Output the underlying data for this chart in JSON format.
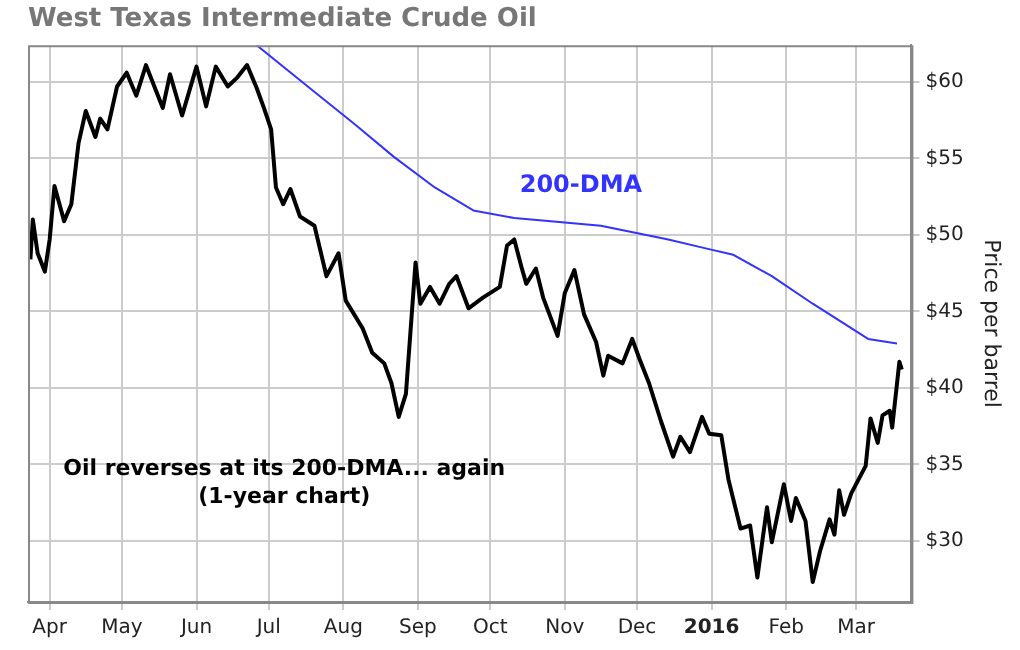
{
  "chart_data": {
    "type": "line",
    "title": "West Texas Intermediate Crude Oil",
    "ylabel": "Price per barrel",
    "annotations": [
      "Oil reverses at its 200-DMA... again",
      "(1-year chart)"
    ],
    "xlim": [
      "2015-03-23",
      "2016-03-24"
    ],
    "xticks": [
      {
        "value": "2015-04-01",
        "label": "Apr"
      },
      {
        "value": "2015-05-01",
        "label": "May"
      },
      {
        "value": "2015-06-01",
        "label": "Jun"
      },
      {
        "value": "2015-07-01",
        "label": "Jul"
      },
      {
        "value": "2015-08-01",
        "label": "Aug"
      },
      {
        "value": "2015-09-01",
        "label": "Sep"
      },
      {
        "value": "2015-10-01",
        "label": "Oct"
      },
      {
        "value": "2015-11-01",
        "label": "Nov"
      },
      {
        "value": "2015-12-01",
        "label": "Dec"
      },
      {
        "value": "2016-01-01",
        "label": "2016"
      },
      {
        "value": "2016-02-01",
        "label": "Feb"
      },
      {
        "value": "2016-03-01",
        "label": "Mar"
      }
    ],
    "ylim": [
      26,
      62.4
    ],
    "yticks": [
      {
        "value": 30,
        "label": "$30"
      },
      {
        "value": 35,
        "label": "$35"
      },
      {
        "value": 40,
        "label": "$40"
      },
      {
        "value": 45,
        "label": "$45"
      },
      {
        "value": 50,
        "label": "$50"
      },
      {
        "value": 55,
        "label": "$55"
      },
      {
        "value": 60,
        "label": "$60"
      }
    ],
    "grid": true,
    "legend": false,
    "marker": "none",
    "line_style": "solid",
    "series": [
      {
        "color": "#000000",
        "x": [
          "2015-03-24",
          "2015-03-25",
          "2015-03-27",
          "2015-03-30",
          "2015-04-01",
          "2015-04-03",
          "2015-04-07",
          "2015-04-10",
          "2015-04-13",
          "2015-04-16",
          "2015-04-20",
          "2015-04-22",
          "2015-04-25",
          "2015-04-29",
          "2015-05-03",
          "2015-05-07",
          "2015-05-11",
          "2015-05-14",
          "2015-05-18",
          "2015-05-21",
          "2015-05-26",
          "2015-06-01",
          "2015-06-05",
          "2015-06-09",
          "2015-06-14",
          "2015-06-18",
          "2015-06-22",
          "2015-06-26",
          "2015-06-29",
          "2015-07-02",
          "2015-07-04",
          "2015-07-07",
          "2015-07-10",
          "2015-07-14",
          "2015-07-20",
          "2015-07-25",
          "2015-07-30",
          "2015-08-02",
          "2015-08-09",
          "2015-08-13",
          "2015-08-18",
          "2015-08-21",
          "2015-08-24",
          "2015-08-27",
          "2015-08-31",
          "2015-09-02",
          "2015-09-06",
          "2015-09-10",
          "2015-09-14",
          "2015-09-17",
          "2015-09-22",
          "2015-09-28",
          "2015-10-05",
          "2015-10-08",
          "2015-10-11",
          "2015-10-14",
          "2015-10-16",
          "2015-10-20",
          "2015-10-23",
          "2015-10-29",
          "2015-11-01",
          "2015-11-05",
          "2015-11-09",
          "2015-11-14",
          "2015-11-17",
          "2015-11-19",
          "2015-11-25",
          "2015-11-29",
          "2015-12-02",
          "2015-12-06",
          "2015-12-11",
          "2015-12-16",
          "2015-12-19",
          "2015-12-23",
          "2015-12-28",
          "2015-12-31",
          "2016-01-05",
          "2016-01-08",
          "2016-01-13",
          "2016-01-17",
          "2016-01-20",
          "2016-01-24",
          "2016-01-26",
          "2016-01-31",
          "2016-02-03",
          "2016-02-05",
          "2016-02-09",
          "2016-02-12",
          "2016-02-15",
          "2016-02-19",
          "2016-02-21",
          "2016-02-23",
          "2016-02-25",
          "2016-02-28",
          "2016-03-02",
          "2016-03-05",
          "2016-03-07",
          "2016-03-10",
          "2016-03-12",
          "2016-03-15",
          "2016-03-16",
          "2016-03-19",
          "2016-03-20"
        ],
        "values": [
          48.4,
          51.0,
          48.8,
          47.6,
          49.7,
          53.2,
          50.9,
          52.0,
          56.0,
          58.1,
          56.4,
          57.6,
          56.9,
          59.7,
          60.6,
          59.1,
          61.1,
          59.9,
          58.3,
          60.5,
          57.8,
          61.0,
          58.4,
          61.0,
          59.7,
          60.3,
          61.1,
          59.6,
          58.3,
          56.9,
          53.1,
          52.0,
          53.0,
          51.2,
          50.6,
          47.3,
          48.8,
          45.7,
          43.9,
          42.3,
          41.6,
          40.3,
          38.1,
          39.6,
          48.2,
          45.5,
          46.6,
          45.5,
          46.8,
          47.3,
          45.2,
          45.9,
          46.6,
          49.3,
          49.7,
          47.9,
          46.8,
          47.8,
          45.9,
          43.4,
          46.2,
          47.7,
          44.8,
          43.0,
          40.8,
          42.1,
          41.6,
          43.2,
          41.9,
          40.3,
          37.8,
          35.5,
          36.8,
          35.8,
          38.1,
          37.0,
          36.9,
          34.0,
          30.8,
          31.0,
          27.6,
          32.2,
          29.9,
          33.7,
          31.3,
          32.8,
          31.3,
          27.3,
          29.3,
          31.4,
          30.4,
          33.3,
          31.7,
          33.1,
          34.0,
          34.9,
          38.0,
          36.4,
          38.2,
          38.5,
          37.4,
          41.7,
          41.2
        ]
      },
      {
        "name": "200-DMA",
        "color": "#3333ff",
        "x": [
          "2015-06-26",
          "2015-07-18",
          "2015-08-06",
          "2015-08-22",
          "2015-09-08",
          "2015-09-24",
          "2015-10-11",
          "2015-10-25",
          "2015-11-16",
          "2015-12-14",
          "2015-12-30",
          "2016-01-10",
          "2016-01-26",
          "2016-02-12",
          "2016-02-28",
          "2016-03-06",
          "2016-03-18"
        ],
        "values": [
          62.4,
          59.6,
          57.2,
          55.1,
          53.1,
          51.6,
          51.1,
          50.9,
          50.6,
          49.7,
          49.1,
          48.7,
          47.3,
          45.5,
          43.9,
          43.2,
          42.9
        ]
      }
    ]
  }
}
